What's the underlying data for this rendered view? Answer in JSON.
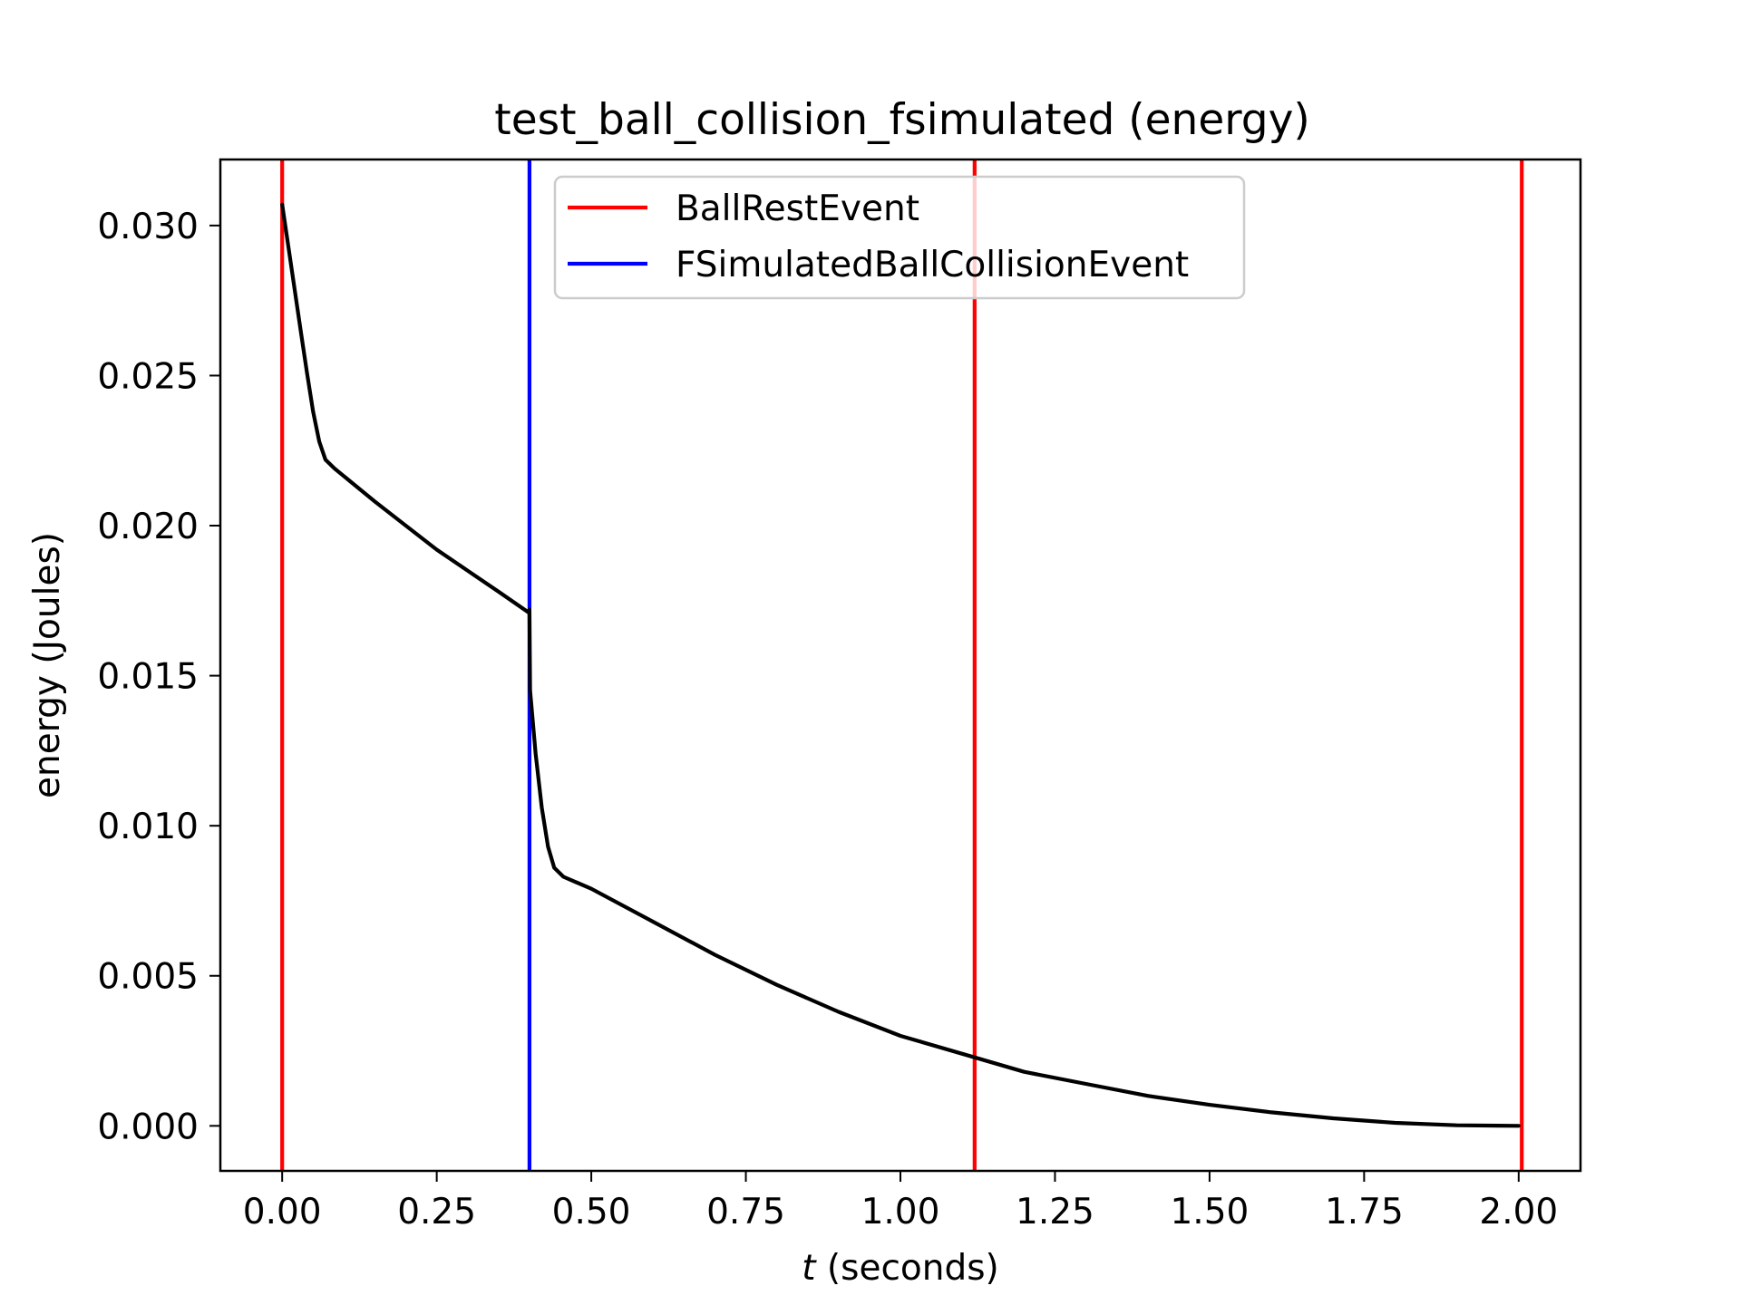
{
  "chart_data": {
    "type": "line",
    "title": "test_ball_collision_fsimulated (energy)",
    "xlabel": {
      "italic": "t",
      "rest": " (seconds)"
    },
    "ylabel": "energy (Joules)",
    "xlim": [
      -0.1,
      2.1
    ],
    "ylim": [
      -0.0015,
      0.0322
    ],
    "xticks": [
      0.0,
      0.25,
      0.5,
      0.75,
      1.0,
      1.25,
      1.5,
      1.75,
      2.0
    ],
    "xtick_labels": [
      "0.00",
      "0.25",
      "0.50",
      "0.75",
      "1.00",
      "1.25",
      "1.50",
      "1.75",
      "2.00"
    ],
    "yticks": [
      0.0,
      0.005,
      0.01,
      0.015,
      0.02,
      0.025,
      0.03
    ],
    "ytick_labels": [
      "0.000",
      "0.005",
      "0.010",
      "0.015",
      "0.020",
      "0.025",
      "0.030"
    ],
    "grid": false,
    "legend_position": "top-center",
    "legend": [
      {
        "label": "BallRestEvent",
        "color": "#ff0000"
      },
      {
        "label": "FSimulatedBallCollisionEvent",
        "color": "#0000ff"
      }
    ],
    "vlines": [
      {
        "x": 0.0,
        "color": "#ff0000",
        "event": "BallRestEvent"
      },
      {
        "x": 0.4,
        "color": "#0000ff",
        "event": "FSimulatedBallCollisionEvent"
      },
      {
        "x": 1.12,
        "color": "#ff0000",
        "event": "BallRestEvent"
      },
      {
        "x": 2.005,
        "color": "#ff0000",
        "event": "BallRestEvent"
      }
    ],
    "series": [
      {
        "color": "#000000",
        "points": [
          [
            0.0,
            0.0307
          ],
          [
            0.01,
            0.0293
          ],
          [
            0.02,
            0.0279
          ],
          [
            0.03,
            0.0265
          ],
          [
            0.04,
            0.0251
          ],
          [
            0.05,
            0.0238
          ],
          [
            0.06,
            0.0228
          ],
          [
            0.07,
            0.0222
          ],
          [
            0.085,
            0.0219
          ],
          [
            0.15,
            0.0208
          ],
          [
            0.2,
            0.02
          ],
          [
            0.25,
            0.0192
          ],
          [
            0.3,
            0.0185
          ],
          [
            0.35,
            0.0178
          ],
          [
            0.399,
            0.0171
          ],
          [
            0.4,
            0.0172
          ],
          [
            0.401,
            0.0145
          ],
          [
            0.41,
            0.0124
          ],
          [
            0.42,
            0.0106
          ],
          [
            0.43,
            0.0093
          ],
          [
            0.44,
            0.0086
          ],
          [
            0.455,
            0.0083
          ],
          [
            0.5,
            0.0079
          ],
          [
            0.6,
            0.0068
          ],
          [
            0.7,
            0.0057
          ],
          [
            0.8,
            0.0047
          ],
          [
            0.9,
            0.0038
          ],
          [
            1.0,
            0.003
          ],
          [
            1.1,
            0.0024
          ],
          [
            1.2,
            0.0018
          ],
          [
            1.3,
            0.0014
          ],
          [
            1.4,
            0.001
          ],
          [
            1.5,
            0.0007
          ],
          [
            1.6,
            0.00045
          ],
          [
            1.7,
            0.00025
          ],
          [
            1.8,
            0.0001
          ],
          [
            1.9,
            2e-05
          ],
          [
            2.0,
            0.0
          ]
        ]
      }
    ]
  }
}
